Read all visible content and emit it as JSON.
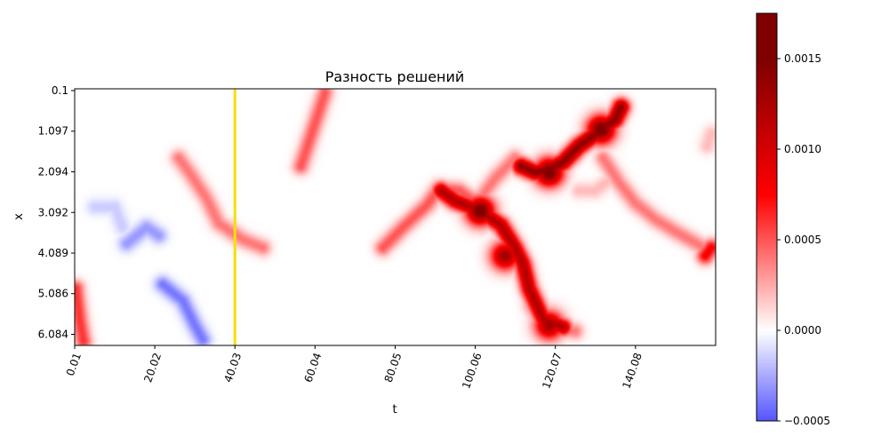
{
  "chart_data": [
    {
      "type": "heatmap",
      "title": "Разность решений",
      "xlabel": "t",
      "ylabel": "x",
      "xlim": [
        0.01,
        160.1
      ],
      "ylim": [
        0.1,
        6.4
      ],
      "x_ticks": [
        0.01,
        20.02,
        40.03,
        60.04,
        80.05,
        100.06,
        120.07,
        140.08
      ],
      "x_tick_labels": [
        "0.01",
        "20.02",
        "40.03",
        "60.04",
        "80.05",
        "100.06",
        "120.07",
        "140.08"
      ],
      "y_ticks": [
        0.1,
        1.097,
        2.094,
        3.092,
        4.089,
        5.086,
        6.084
      ],
      "y_tick_labels": [
        "0.1",
        "1.097",
        "2.094",
        "3.092",
        "4.089",
        "5.086",
        "6.084"
      ],
      "y_axis_inverted": true,
      "colormap": "seismic",
      "background_value": 0.0,
      "vline": {
        "t": 40.03,
        "color": "#f5e000"
      },
      "features": [
        {
          "kind": "ridge",
          "points": [
            [
              62.5,
              0.2
            ],
            [
              59.5,
              1.1
            ],
            [
              56.5,
              2.0
            ]
          ],
          "value": 0.0005
        },
        {
          "kind": "ridge",
          "points": [
            [
              77,
              4.0
            ],
            [
              82,
              3.5
            ],
            [
              88,
              2.95
            ],
            [
              91,
              2.55
            ],
            [
              96,
              2.6
            ],
            [
              100.5,
              2.9
            ]
          ],
          "value": 0.0005
        },
        {
          "kind": "ridge",
          "points": [
            [
              100.5,
              2.9
            ],
            [
              105,
              2.3
            ],
            [
              110,
              1.8
            ],
            [
              113.5,
              2.1
            ]
          ],
          "value": 0.0004
        },
        {
          "kind": "ridge",
          "points": [
            [
              110,
              4.0
            ],
            [
              113,
              4.6
            ],
            [
              114,
              5.4
            ],
            [
              117,
              5.95
            ],
            [
              125,
              6.05
            ]
          ],
          "value": 0.0004
        },
        {
          "kind": "ridge",
          "points": [
            [
              132,
              1.8
            ],
            [
              136,
              2.4
            ],
            [
              140,
              2.9
            ],
            [
              145,
              3.3
            ],
            [
              150,
              3.6
            ],
            [
              159,
              4.1
            ]
          ],
          "value": 0.0004
        },
        {
          "kind": "ridge",
          "points": [
            [
              126,
              2.6
            ],
            [
              130,
              2.6
            ],
            [
              134,
              2.3
            ]
          ],
          "value": 0.0002
        },
        {
          "kind": "ridge",
          "points": [
            [
              26,
              1.8
            ],
            [
              29,
              2.2
            ],
            [
              33,
              2.8
            ],
            [
              36,
              3.4
            ],
            [
              42,
              3.8
            ],
            [
              47,
              4.0
            ]
          ],
          "value": 0.0004
        },
        {
          "kind": "ridge",
          "points": [
            [
              0.3,
              5.0
            ],
            [
              1.3,
              5.8
            ],
            [
              2.2,
              6.3
            ]
          ],
          "value": 0.0006
        },
        {
          "kind": "ridge",
          "points": [
            [
              159,
              1.2
            ],
            [
              158,
              1.5
            ]
          ],
          "value": 0.0002
        },
        {
          "kind": "ridge",
          "points": [
            [
              91.5,
              2.6
            ],
            [
              95,
              2.85
            ],
            [
              101.5,
              3.1
            ],
            [
              106.5,
              3.45
            ],
            [
              110,
              4.0
            ],
            [
              112,
              4.4
            ],
            [
              113.5,
              5.0
            ],
            [
              117,
              5.75
            ],
            [
              122,
              5.95
            ]
          ],
          "value": 0.0012
        },
        {
          "kind": "ridge",
          "points": [
            [
              111.5,
              2.0
            ],
            [
              115,
              2.15
            ],
            [
              118,
              2.1
            ],
            [
              122,
              1.9
            ],
            [
              126,
              1.5
            ],
            [
              131,
              1.15
            ],
            [
              135,
              0.85
            ],
            [
              136.5,
              0.55
            ]
          ],
          "value": 0.0014
        },
        {
          "kind": "ridge",
          "points": [
            [
              159,
              4.0
            ],
            [
              157.5,
              4.2
            ]
          ],
          "value": 0.0008
        },
        {
          "kind": "blob",
          "t": 101.3,
          "x": 3.1,
          "value": 0.0016
        },
        {
          "kind": "blob",
          "t": 118.5,
          "x": 2.15,
          "value": 0.0016
        },
        {
          "kind": "blob",
          "t": 131.5,
          "x": 1.1,
          "value": 0.0016
        },
        {
          "kind": "blob",
          "t": 107.5,
          "x": 4.2,
          "value": 0.0013
        },
        {
          "kind": "blob",
          "t": 118.5,
          "x": 5.9,
          "value": 0.0013
        },
        {
          "kind": "ridge",
          "points": [
            [
              13,
              3.9
            ],
            [
              18,
              3.5
            ],
            [
              21,
              3.7
            ]
          ],
          "value": -0.0003
        },
        {
          "kind": "ridge",
          "points": [
            [
              22,
              4.9
            ],
            [
              27,
              5.3
            ],
            [
              30,
              5.9
            ],
            [
              32,
              6.25
            ]
          ],
          "value": -0.0004
        },
        {
          "kind": "ridge",
          "points": [
            [
              5,
              3.0
            ],
            [
              10,
              3.0
            ],
            [
              12,
              3.5
            ]
          ],
          "value": -0.00015
        }
      ],
      "colorbar": {
        "range": [
          -0.0005,
          0.00175
        ],
        "ticks": [
          -0.0005,
          0.0,
          0.0005,
          0.001,
          0.0015
        ],
        "tick_labels": [
          "−0.0005",
          "0.0000",
          "0.0005",
          "0.0010",
          "0.0015"
        ]
      }
    }
  ]
}
